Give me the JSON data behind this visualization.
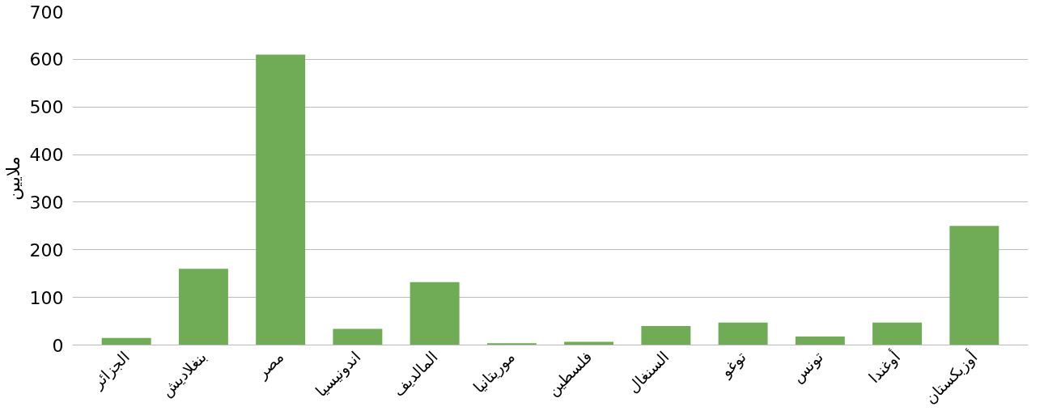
{
  "chart_data": {
    "type": "bar",
    "ylabel": "ملايين",
    "categories": [
      "الجزائر",
      "بنغلاديش",
      "مصر",
      "اندونيسيا",
      "المالديف",
      "موريتانيا",
      "فلسطين",
      "السنغال",
      "توغو",
      "تونس",
      "أوغندا",
      "أوزبكستان"
    ],
    "values": [
      15,
      160,
      610,
      34,
      132,
      4,
      7,
      40,
      47,
      18,
      47,
      250
    ],
    "color": "#70ac55",
    "ylim": [
      0,
      700
    ],
    "yticks": [
      0,
      100,
      200,
      300,
      400,
      500,
      600,
      700
    ],
    "grid": "y"
  }
}
